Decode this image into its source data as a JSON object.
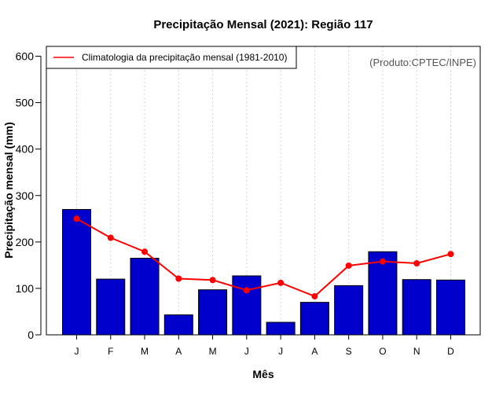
{
  "chart_data": {
    "type": "bar",
    "title": "Precipitação Mensal (2021): Região 117",
    "xlabel": "Mês",
    "ylabel": "Precipitação mensal (mm)",
    "ylim": [
      0,
      600
    ],
    "yticks": [
      0,
      100,
      200,
      300,
      400,
      500,
      600
    ],
    "categories": [
      "J",
      "F",
      "M",
      "A",
      "M",
      "J",
      "J",
      "A",
      "S",
      "O",
      "N",
      "D"
    ],
    "series": [
      {
        "name": "Precipitação mensal (2021)",
        "kind": "bar",
        "color": "#0000cd",
        "values": [
          270,
          120,
          165,
          43,
          97,
          127,
          27,
          70,
          106,
          179,
          119,
          118
        ]
      },
      {
        "name": "Climatologia da precipitação mensal (1981-2010)",
        "kind": "line",
        "color": "#ff0000",
        "values": [
          250,
          209,
          179,
          121,
          118,
          96,
          112,
          83,
          149,
          158,
          154,
          174
        ]
      }
    ],
    "legend": {
      "position": "top-left",
      "label": "Climatologia da precipitação mensal (1981-2010)"
    },
    "grid": "vertical-dotted",
    "source_note": "(Produto:CPTEC/INPE)"
  }
}
